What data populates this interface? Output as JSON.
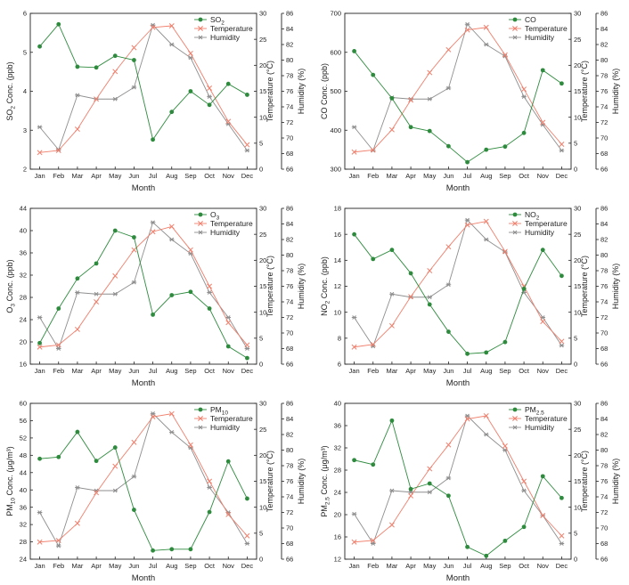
{
  "months": [
    "Jan",
    "Feb",
    "Mar",
    "Apr",
    "May",
    "Jun",
    "Jul",
    "Aug",
    "Sep",
    "Oct",
    "Nov",
    "Dec"
  ],
  "colors": {
    "pollutant": "#2e8b3e",
    "temperature": "#f07f6c",
    "humidity": "#8e8e8e",
    "axis": "#222222"
  },
  "chart_data": [
    {
      "type": "line",
      "pollutant": {
        "name": "SO",
        "sub": "2"
      },
      "ylabel": {
        "main": "SO",
        "sub": "2",
        "rest": " Conc. (ppb)"
      },
      "xlabel": "Month",
      "ylim": [
        2,
        6
      ],
      "yticks": [
        2,
        3,
        4,
        5,
        6
      ],
      "r1label": "Temperature (°C)",
      "r1lim": [
        0,
        30
      ],
      "r1ticks": [
        0,
        5,
        10,
        15,
        20,
        25,
        30
      ],
      "r2label": "Humidity (%)",
      "r2lim": [
        66,
        86
      ],
      "r2ticks": [
        66,
        68,
        70,
        72,
        74,
        76,
        78,
        80,
        82,
        84,
        86
      ],
      "legend": [
        "SO2",
        "Temperature",
        "Humidity"
      ],
      "series": [
        {
          "name": "SO2",
          "axis": "left",
          "values": [
            5.15,
            5.72,
            4.63,
            4.61,
            4.91,
            4.8,
            2.76,
            3.47,
            4.0,
            3.65,
            4.19,
            3.91
          ]
        },
        {
          "name": "Temperature",
          "axis": "r1",
          "values": [
            3.2,
            3.6,
            7.7,
            13.5,
            18.8,
            23.4,
            27.3,
            27.6,
            22.3,
            15.6,
            9.2,
            4.7
          ]
        },
        {
          "name": "Humidity",
          "axis": "r2",
          "values": [
            71.4,
            68.5,
            75.5,
            75.0,
            75.0,
            76.5,
            84.5,
            82.0,
            80.3,
            75.3,
            71.8,
            68.4
          ]
        }
      ]
    },
    {
      "type": "line",
      "pollutant": {
        "name": "CO",
        "sub": ""
      },
      "ylabel": {
        "main": "CO",
        "sub": "",
        "rest": " Conc. (ppb)"
      },
      "xlabel": "Month",
      "ylim": [
        300,
        700
      ],
      "yticks": [
        300,
        400,
        500,
        600,
        700
      ],
      "r1label": "Temperature (°C)",
      "r1lim": [
        0,
        30
      ],
      "r1ticks": [
        0,
        5,
        10,
        15,
        20,
        25,
        30
      ],
      "r2label": "Humidity (%)",
      "r2lim": [
        66,
        86
      ],
      "r2ticks": [
        66,
        68,
        70,
        72,
        74,
        76,
        78,
        80,
        82,
        84,
        86
      ],
      "legend": [
        "CO",
        "Temperature",
        "Humidity"
      ],
      "series": [
        {
          "name": "CO",
          "axis": "left",
          "values": [
            603,
            542,
            482,
            408,
            398,
            359,
            318,
            350,
            358,
            393,
            554,
            520
          ]
        },
        {
          "name": "Temperature",
          "axis": "r1",
          "values": [
            3.3,
            3.7,
            7.6,
            13.3,
            18.6,
            23.0,
            26.8,
            27.3,
            22.0,
            15.4,
            9.0,
            4.8
          ]
        },
        {
          "name": "Humidity",
          "axis": "r2",
          "values": [
            71.4,
            68.4,
            75.2,
            75.0,
            75.0,
            76.4,
            84.6,
            82.0,
            80.5,
            75.3,
            71.7,
            68.4
          ]
        }
      ]
    },
    {
      "type": "line",
      "pollutant": {
        "name": "O",
        "sub": "3"
      },
      "ylabel": {
        "main": "O",
        "sub": "3",
        "rest": " Conc. (ppb)"
      },
      "xlabel": "Month",
      "ylim": [
        16,
        44
      ],
      "yticks": [
        16,
        20,
        24,
        28,
        32,
        36,
        40,
        44
      ],
      "r1label": "Temperature (°C)",
      "r1lim": [
        0,
        30
      ],
      "r1ticks": [
        0,
        5,
        10,
        15,
        20,
        25,
        30
      ],
      "r2label": "Humidity (%)",
      "r2lim": [
        66,
        86
      ],
      "r2ticks": [
        66,
        68,
        70,
        72,
        74,
        76,
        78,
        80,
        82,
        84,
        86
      ],
      "legend": [
        "O3",
        "Temperature",
        "Humidity"
      ],
      "series": [
        {
          "name": "O3",
          "axis": "left",
          "values": [
            19.8,
            26.0,
            31.4,
            34.1,
            40.0,
            38.8,
            24.9,
            28.4,
            29.0,
            26.0,
            19.2,
            17.1
          ]
        },
        {
          "name": "Temperature",
          "axis": "r1",
          "values": [
            3.3,
            3.7,
            6.7,
            12.0,
            17.0,
            22.0,
            25.5,
            26.5,
            22.0,
            15.0,
            8.0,
            3.7
          ]
        },
        {
          "name": "Humidity",
          "axis": "r2",
          "values": [
            72.0,
            68.0,
            75.2,
            75.0,
            75.0,
            76.5,
            84.2,
            82.0,
            80.2,
            75.2,
            72.0,
            68.0
          ]
        }
      ]
    },
    {
      "type": "line",
      "pollutant": {
        "name": "NO",
        "sub": "2"
      },
      "ylabel": {
        "main": "NO",
        "sub": "2",
        "rest": " Conc. (ppb)"
      },
      "xlabel": "Month",
      "ylim": [
        6,
        18
      ],
      "yticks": [
        6,
        8,
        10,
        12,
        14,
        16,
        18
      ],
      "r1label": "Temperature (°C)",
      "r1lim": [
        0,
        30
      ],
      "r1ticks": [
        0,
        5,
        10,
        15,
        20,
        25,
        30
      ],
      "r2label": "Humidity (%)",
      "r2lim": [
        66,
        86
      ],
      "r2ticks": [
        66,
        68,
        70,
        72,
        74,
        76,
        78,
        80,
        82,
        84,
        86
      ],
      "legend": [
        "NO2",
        "Temperature",
        "Humidity"
      ],
      "series": [
        {
          "name": "NO2",
          "axis": "left",
          "values": [
            16.0,
            14.1,
            14.8,
            13.0,
            10.6,
            8.5,
            6.8,
            6.9,
            7.7,
            11.8,
            14.8,
            12.8
          ]
        },
        {
          "name": "Temperature",
          "axis": "r1",
          "values": [
            3.3,
            3.8,
            7.4,
            13.0,
            18.0,
            22.6,
            26.8,
            27.5,
            21.7,
            15.0,
            8.2,
            4.4
          ]
        },
        {
          "name": "Humidity",
          "axis": "r2",
          "values": [
            72.0,
            68.3,
            75.0,
            74.6,
            74.6,
            76.2,
            84.5,
            82.0,
            80.4,
            75.2,
            72.0,
            68.4
          ]
        }
      ]
    },
    {
      "type": "line",
      "pollutant": {
        "name": "PM",
        "sub": "10"
      },
      "ylabel": {
        "main": "PM",
        "sub": "10",
        "rest": " Conc. (μg/m³)"
      },
      "xlabel": "Month",
      "ylim": [
        24,
        60
      ],
      "yticks": [
        24,
        28,
        32,
        36,
        40,
        44,
        48,
        52,
        56,
        60
      ],
      "r1label": "Temperature (°C)",
      "r1lim": [
        0,
        30
      ],
      "r1ticks": [
        0,
        5,
        10,
        15,
        20,
        25,
        30
      ],
      "r2label": "Humidity (%)",
      "r2lim": [
        66,
        86
      ],
      "r2ticks": [
        66,
        68,
        70,
        72,
        74,
        76,
        78,
        80,
        82,
        84,
        86
      ],
      "legend": [
        "PM10",
        "Temperature",
        "Humidity"
      ],
      "series": [
        {
          "name": "PM10",
          "axis": "left",
          "values": [
            47.2,
            47.6,
            53.4,
            46.7,
            49.8,
            35.4,
            26.0,
            26.3,
            26.3,
            34.9,
            46.6,
            38.0
          ]
        },
        {
          "name": "Temperature",
          "axis": "r1",
          "values": [
            3.3,
            3.6,
            6.9,
            12.8,
            17.9,
            22.5,
            27.4,
            28.0,
            22.0,
            15.0,
            8.6,
            4.5
          ]
        },
        {
          "name": "Humidity",
          "axis": "r2",
          "values": [
            72.0,
            67.7,
            75.2,
            74.8,
            74.8,
            76.6,
            84.7,
            82.3,
            80.3,
            75.2,
            72.0,
            68.0
          ]
        }
      ]
    },
    {
      "type": "line",
      "pollutant": {
        "name": "PM",
        "sub": "2.5"
      },
      "ylabel": {
        "main": "PM",
        "sub": "2.5",
        "rest": " Conc. (μg/m³)"
      },
      "xlabel": "Month",
      "ylim": [
        12,
        40
      ],
      "yticks": [
        12,
        16,
        20,
        24,
        28,
        32,
        36,
        40
      ],
      "r1label": "Temperature (°C)",
      "r1lim": [
        0,
        30
      ],
      "r1ticks": [
        0,
        5,
        10,
        15,
        20,
        25,
        30
      ],
      "r2label": "Humidity (%)",
      "r2lim": [
        66,
        86
      ],
      "r2ticks": [
        66,
        68,
        70,
        72,
        74,
        76,
        78,
        80,
        82,
        84,
        86
      ],
      "legend": [
        "PM2.5",
        "Temperature",
        "Humidity"
      ],
      "series": [
        {
          "name": "PM2.5",
          "axis": "left",
          "values": [
            29.8,
            29.0,
            36.9,
            24.6,
            25.6,
            23.4,
            14.2,
            12.6,
            15.3,
            17.8,
            26.9,
            23.0
          ]
        },
        {
          "name": "Temperature",
          "axis": "r1",
          "values": [
            3.3,
            3.6,
            6.6,
            12.2,
            17.4,
            22.0,
            27.0,
            27.6,
            21.8,
            15.0,
            8.4,
            4.5
          ]
        },
        {
          "name": "Humidity",
          "axis": "r2",
          "values": [
            71.8,
            68.0,
            74.8,
            74.6,
            74.6,
            76.4,
            84.4,
            82.0,
            80.0,
            74.8,
            71.6,
            68.0
          ]
        }
      ]
    }
  ]
}
